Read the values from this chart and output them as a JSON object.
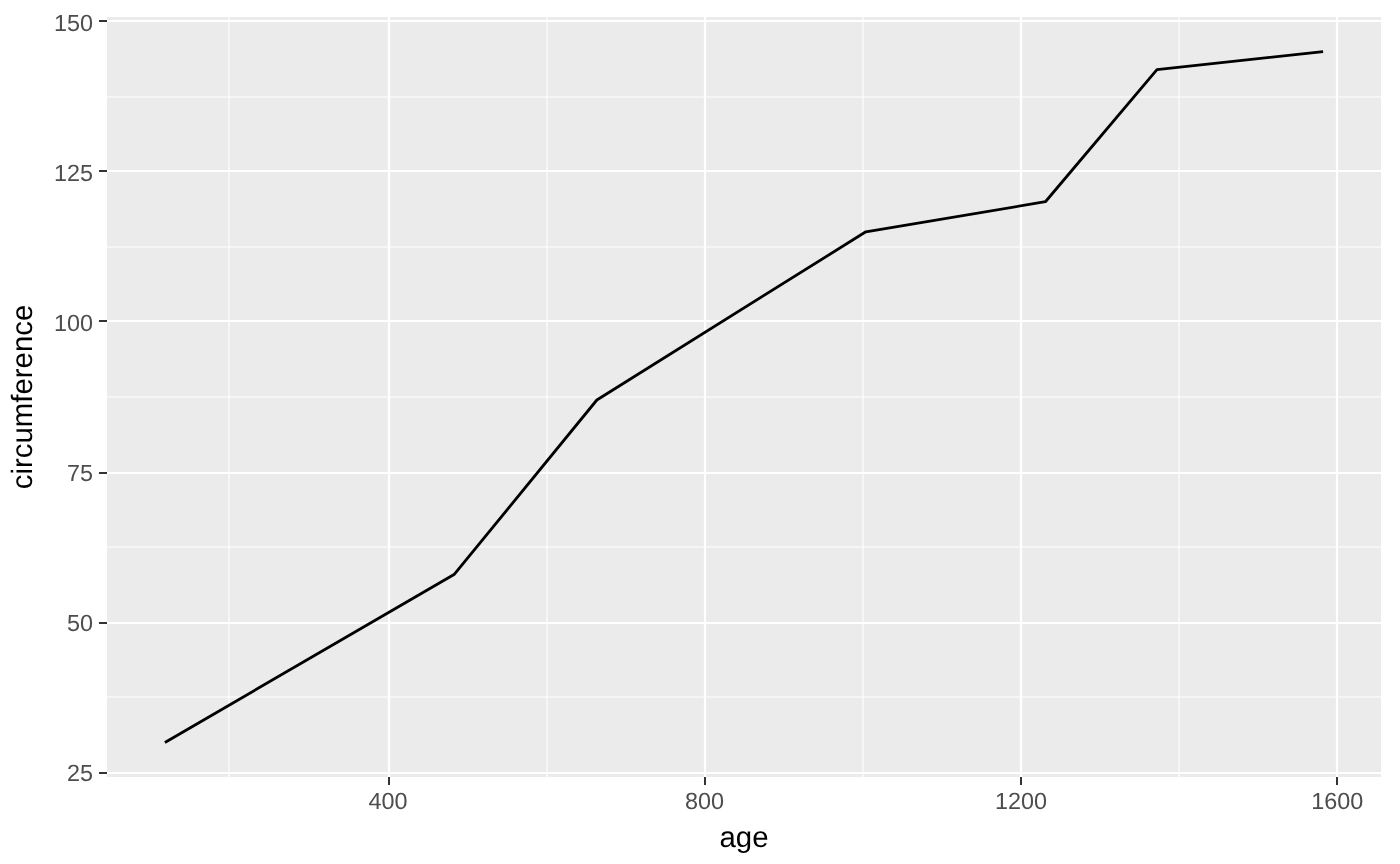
{
  "chart_data": {
    "type": "line",
    "xlabel": "age",
    "ylabel": "circumference",
    "x": [
      118,
      484,
      664,
      1004,
      1231,
      1372,
      1582
    ],
    "series": [
      {
        "color": "#000000",
        "values": [
          30,
          58,
          87,
          115,
          120,
          142,
          145
        ]
      }
    ],
    "xlim": [
      44.8,
      1655.2
    ],
    "ylim": [
      24.25,
      150.75
    ],
    "xticks": [
      400,
      800,
      1200,
      1600
    ],
    "yticks": [
      25,
      50,
      75,
      100,
      125,
      150
    ],
    "grid": true,
    "line_style": "solid"
  }
}
